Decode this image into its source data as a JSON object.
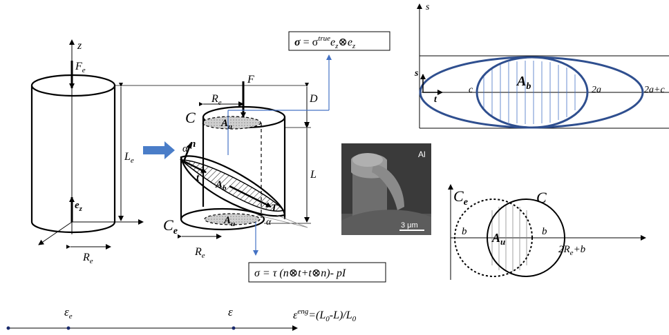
{
  "cylinder_left": {
    "axis_z": "z",
    "force_main": "F",
    "force_sub": "e",
    "length_main": "L",
    "length_sub": "e",
    "basis_main": "e",
    "basis_sub": "z",
    "radius_main": "R",
    "radius_sub": "e"
  },
  "cylinder_right": {
    "force": "F",
    "label_C": "C",
    "label_Ce_main": "C",
    "label_Ce_sub": "e",
    "radius_top_main": "R",
    "radius_top_sub": "e",
    "radius_bottom_main": "R",
    "radius_bottom_sub": "e",
    "offset": "D",
    "length": "L",
    "area_top_main": "A",
    "area_top_sub": "u",
    "area_bottom_main": "A",
    "area_bottom_sub": "u",
    "area_band_main": "A",
    "area_band_sub": "b",
    "normal": "n",
    "tangent_t": "t",
    "traction": "T",
    "angle_top": "α",
    "angle_bottom": "α"
  },
  "formula_top": {
    "sigma": "σ",
    "eq": " = σ",
    "sup": "true",
    "rest": "e",
    "sub1": "z",
    "otimes": "⊗e",
    "sub2": "z"
  },
  "formula_bottom": {
    "text": "σ = τ (n⊗t+t⊗n)- pI"
  },
  "photo": {
    "element": "Al",
    "scale_bar": "3 μm"
  },
  "ellipse_plot": {
    "axis_s": "s",
    "axis_s2": "s",
    "axis_t": "t",
    "c": "c",
    "two_a": "2a",
    "two_a_c": "2a+c",
    "area_main": "A",
    "area_sub": "b"
  },
  "circle_plot": {
    "label_Ce_main": "C",
    "label_Ce_sub": "e",
    "label_C": "C",
    "b_left": "b",
    "b_right": "b",
    "area_main": "A",
    "area_sub": "u",
    "right_label": "2R",
    "right_sub": "e",
    "right_tail": "+b"
  },
  "strain_axis": {
    "eps_e_main": "ε",
    "eps_e_sub": "e",
    "eps": "ε",
    "eps_eng_main": "ε",
    "eps_eng_sup": "eng",
    "eps_eng_formula": "=(L",
    "sub0a": "0",
    "mid": "-L)/L",
    "sub0b": "0"
  },
  "colors": {
    "blue_line": "#4472c4",
    "ellipse_blue": "#2f4f8f",
    "arrow_fill": "#4a7dc8"
  }
}
